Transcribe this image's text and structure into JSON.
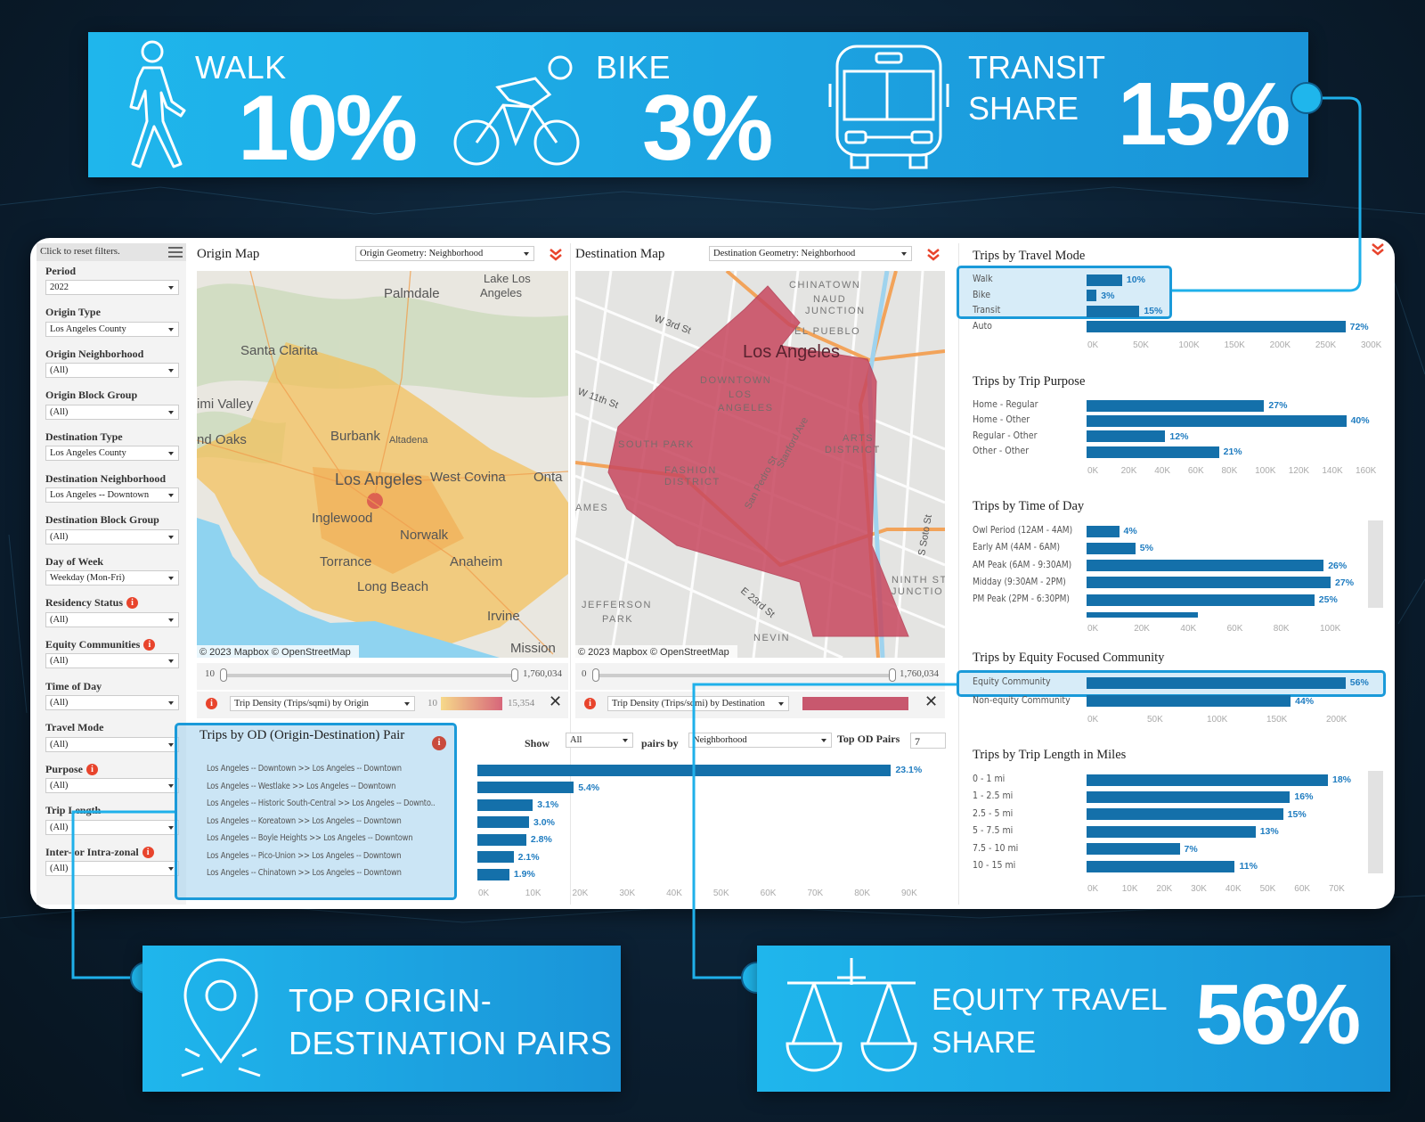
{
  "colors": {
    "banner": "#1fb6ec",
    "bar": "#1470aa",
    "pct_label": "#1f7cc0",
    "highlight": "#1a9ad9",
    "info": "#e8442c",
    "dest_polygon": "#c8485f",
    "background": "#0b1e30"
  },
  "top_banner": {
    "walk": {
      "icon": "walk-icon",
      "label": "WALK",
      "value": "10%"
    },
    "bike": {
      "icon": "bike-icon",
      "label": "BIKE",
      "value": "3%"
    },
    "transit": {
      "icon": "bus-icon",
      "label_line1": "TRANSIT",
      "label_line2": "SHARE",
      "value": "15%"
    }
  },
  "bottom_left_banner": {
    "icon": "map-pin-icon",
    "line1": "TOP ORIGIN-",
    "line2": "DESTINATION PAIRS"
  },
  "bottom_right_banner": {
    "icon": "scale-icon",
    "line1": "EQUITY TRAVEL",
    "line2": "SHARE",
    "value": "56%"
  },
  "sidebar": {
    "reset_label": "Click to reset filters.",
    "filters": [
      {
        "label": "Period",
        "value": "2022",
        "info": false
      },
      {
        "label": "Origin Type",
        "value": "Los Angeles County",
        "info": false
      },
      {
        "label": "Origin Neighborhood",
        "value": "(All)",
        "info": false
      },
      {
        "label": "Origin Block Group",
        "value": "(All)",
        "info": false
      },
      {
        "label": "Destination Type",
        "value": "Los Angeles County",
        "info": false
      },
      {
        "label": "Destination Neighborhood",
        "value": "Los Angeles -- Downtown",
        "info": false
      },
      {
        "label": "Destination Block Group",
        "value": "(All)",
        "info": false
      },
      {
        "label": "Day of Week",
        "value": "Weekday (Mon-Fri)",
        "info": false
      },
      {
        "label": "Residency Status",
        "value": "(All)",
        "info": true
      },
      {
        "label": "Equity Communities",
        "value": "(All)",
        "info": true
      },
      {
        "label": "Time of Day",
        "value": "(All)",
        "info": false
      },
      {
        "label": "Travel Mode",
        "value": "(All)",
        "info": false
      },
      {
        "label": "Purpose",
        "value": "(All)",
        "info": true
      },
      {
        "label": "Trip Length",
        "value": "(All)",
        "info": false
      },
      {
        "label": "Inter- or Intra-zonal",
        "value": "(All)",
        "info": true
      }
    ]
  },
  "origin_map": {
    "title": "Origin Map",
    "geometry_select": "Origin Geometry: Neighborhood",
    "attribution": "© 2023 Mapbox © OpenStreetMap",
    "labels": [
      "Palmdale",
      "Lake Los",
      "Angeles",
      "Santa Clarita",
      "imi Valley",
      "nd Oaks",
      "Burbank",
      "Altadena",
      "Los Angeles",
      "West Covina",
      "Onta",
      "Inglewood",
      "Norwalk",
      "Torrance",
      "Anaheim",
      "Long Beach",
      "Irvine",
      "Mission"
    ],
    "slider": {
      "min": "10",
      "max": "1,760,034"
    },
    "metric_select": "Trip Density (Trips/sqmi) by Origin",
    "legend": {
      "min": "10",
      "max": "15,354"
    }
  },
  "destination_map": {
    "title": "Destination Map",
    "geometry_select": "Destination Geometry: Neighborhood",
    "attribution": "© 2023 Mapbox © OpenStreetMap",
    "labels": [
      "CHINATOWN",
      "NAUD",
      "JUNCTION",
      "EL PUEBLO",
      "Los Angeles",
      "DOWNTOWN",
      "LOS",
      "ANGELES",
      "SOUTH PARK",
      "FASHION",
      "DISTRICT",
      "ARTS",
      "DISTRICT",
      "JEFFERSON",
      "PARK",
      "NEVIN",
      "W 3rd St",
      "W 11th St",
      "AMES",
      "NINTH STR",
      "JUNCTIO",
      "San Pedro St",
      "Stanford Ave",
      "E 23rd St",
      "S Soto St"
    ],
    "slider": {
      "min": "0",
      "max": "1,760,034"
    },
    "metric_select": "Trip Density (Trips/sqmi) by Destination"
  },
  "od": {
    "title": "Trips by OD (Origin-Destination) Pair",
    "show_label": "Show",
    "show_value": "All",
    "pairs_by_label": "pairs by",
    "pairs_by_value": "Neighborhood",
    "top_label": "Top OD Pairs",
    "top_value": "7",
    "axis_ticks": [
      "0K",
      "10K",
      "20K",
      "30K",
      "40K",
      "50K",
      "60K",
      "70K",
      "80K",
      "90K"
    ],
    "axis_max_k": 90,
    "rows": [
      {
        "label": "Los Angeles -- Downtown >> Los Angeles -- Downtown",
        "trips_k": 88,
        "pct": "23.1%"
      },
      {
        "label": "Los Angeles -- Westlake >> Los Angeles -- Downtown",
        "trips_k": 20.5,
        "pct": "5.4%"
      },
      {
        "label": "Los Angeles -- Historic South-Central >> Los Angeles -- Downto..",
        "trips_k": 11.8,
        "pct": "3.1%"
      },
      {
        "label": "Los Angeles -- Koreatown >> Los Angeles -- Downtown",
        "trips_k": 11,
        "pct": "3.0%"
      },
      {
        "label": "Los Angeles -- Boyle Heights >> Los Angeles -- Downtown",
        "trips_k": 10.4,
        "pct": "2.8%"
      },
      {
        "label": "Los Angeles -- Pico-Union >> Los Angeles -- Downtown",
        "trips_k": 7.7,
        "pct": "2.1%"
      },
      {
        "label": "Los Angeles -- Chinatown >> Los Angeles -- Downtown",
        "trips_k": 6.8,
        "pct": "1.9%"
      }
    ]
  },
  "charts": {
    "travel_mode": {
      "title": "Trips by Travel Mode",
      "axis_ticks": [
        "0K",
        "50K",
        "100K",
        "150K",
        "200K",
        "250K",
        "300K"
      ],
      "axis_max_k": 300,
      "rows": [
        {
          "label": "Walk",
          "trips_k": 39,
          "pct": "10%"
        },
        {
          "label": "Bike",
          "trips_k": 11,
          "pct": "3%"
        },
        {
          "label": "Transit",
          "trips_k": 58,
          "pct": "15%"
        },
        {
          "label": "Auto",
          "trips_k": 284,
          "pct": "72%"
        }
      ]
    },
    "purpose": {
      "title": "Trips by Trip Purpose",
      "axis_ticks": [
        "0K",
        "20K",
        "40K",
        "60K",
        "80K",
        "100K",
        "120K",
        "140K",
        "160K"
      ],
      "axis_max_k": 160,
      "rows": [
        {
          "label": "Home -  Regular",
          "trips_k": 106,
          "pct": "27%"
        },
        {
          "label": "Home - Other",
          "trips_k": 155,
          "pct": "40%"
        },
        {
          "label": "Regular - Other",
          "trips_k": 47,
          "pct": "12%"
        },
        {
          "label": "Other - Other",
          "trips_k": 79,
          "pct": "21%"
        }
      ]
    },
    "time_of_day": {
      "title": "Trips by Time of Day",
      "axis_ticks": [
        "0K",
        "20K",
        "40K",
        "60K",
        "80K",
        "100K"
      ],
      "axis_max_k": 100,
      "rows": [
        {
          "label": "Owl Period (12AM - 4AM)",
          "trips_k": 14,
          "pct": "4%"
        },
        {
          "label": "Early AM (4AM - 6AM)",
          "trips_k": 21,
          "pct": "5%"
        },
        {
          "label": "AM Peak (6AM - 9:30AM)",
          "trips_k": 102,
          "pct": "26%"
        },
        {
          "label": "Midday (9:30AM - 2PM)",
          "trips_k": 105,
          "pct": "27%"
        },
        {
          "label": "PM Peak (2PM - 6:30PM)",
          "trips_k": 98,
          "pct": "25%"
        },
        {
          "label": "",
          "trips_k": 48,
          "pct": ""
        }
      ]
    },
    "equity": {
      "title": "Trips by Equity Focused Community",
      "axis_ticks": [
        "0K",
        "50K",
        "100K",
        "150K",
        "200K"
      ],
      "axis_max_k": 200,
      "rows": [
        {
          "label": "Equity Community",
          "trips_k": 217,
          "pct": "56%"
        },
        {
          "label": "Non-equity Community",
          "trips_k": 171,
          "pct": "44%"
        }
      ]
    },
    "trip_length": {
      "title": "Trips by Trip Length in Miles",
      "axis_ticks": [
        "0K",
        "10K",
        "20K",
        "30K",
        "40K",
        "50K",
        "60K",
        "70K"
      ],
      "axis_max_k": 70,
      "rows": [
        {
          "label": "0 - 1 mi",
          "trips_k": 70,
          "pct": "18%"
        },
        {
          "label": "1 - 2.5 mi",
          "trips_k": 59,
          "pct": "16%"
        },
        {
          "label": "2.5 - 5 mi",
          "trips_k": 57,
          "pct": "15%"
        },
        {
          "label": "5 - 7.5 mi",
          "trips_k": 49,
          "pct": "13%"
        },
        {
          "label": "7.5 - 10 mi",
          "trips_k": 27,
          "pct": "7%"
        },
        {
          "label": "10 - 15 mi",
          "trips_k": 43,
          "pct": "11%"
        }
      ]
    }
  }
}
